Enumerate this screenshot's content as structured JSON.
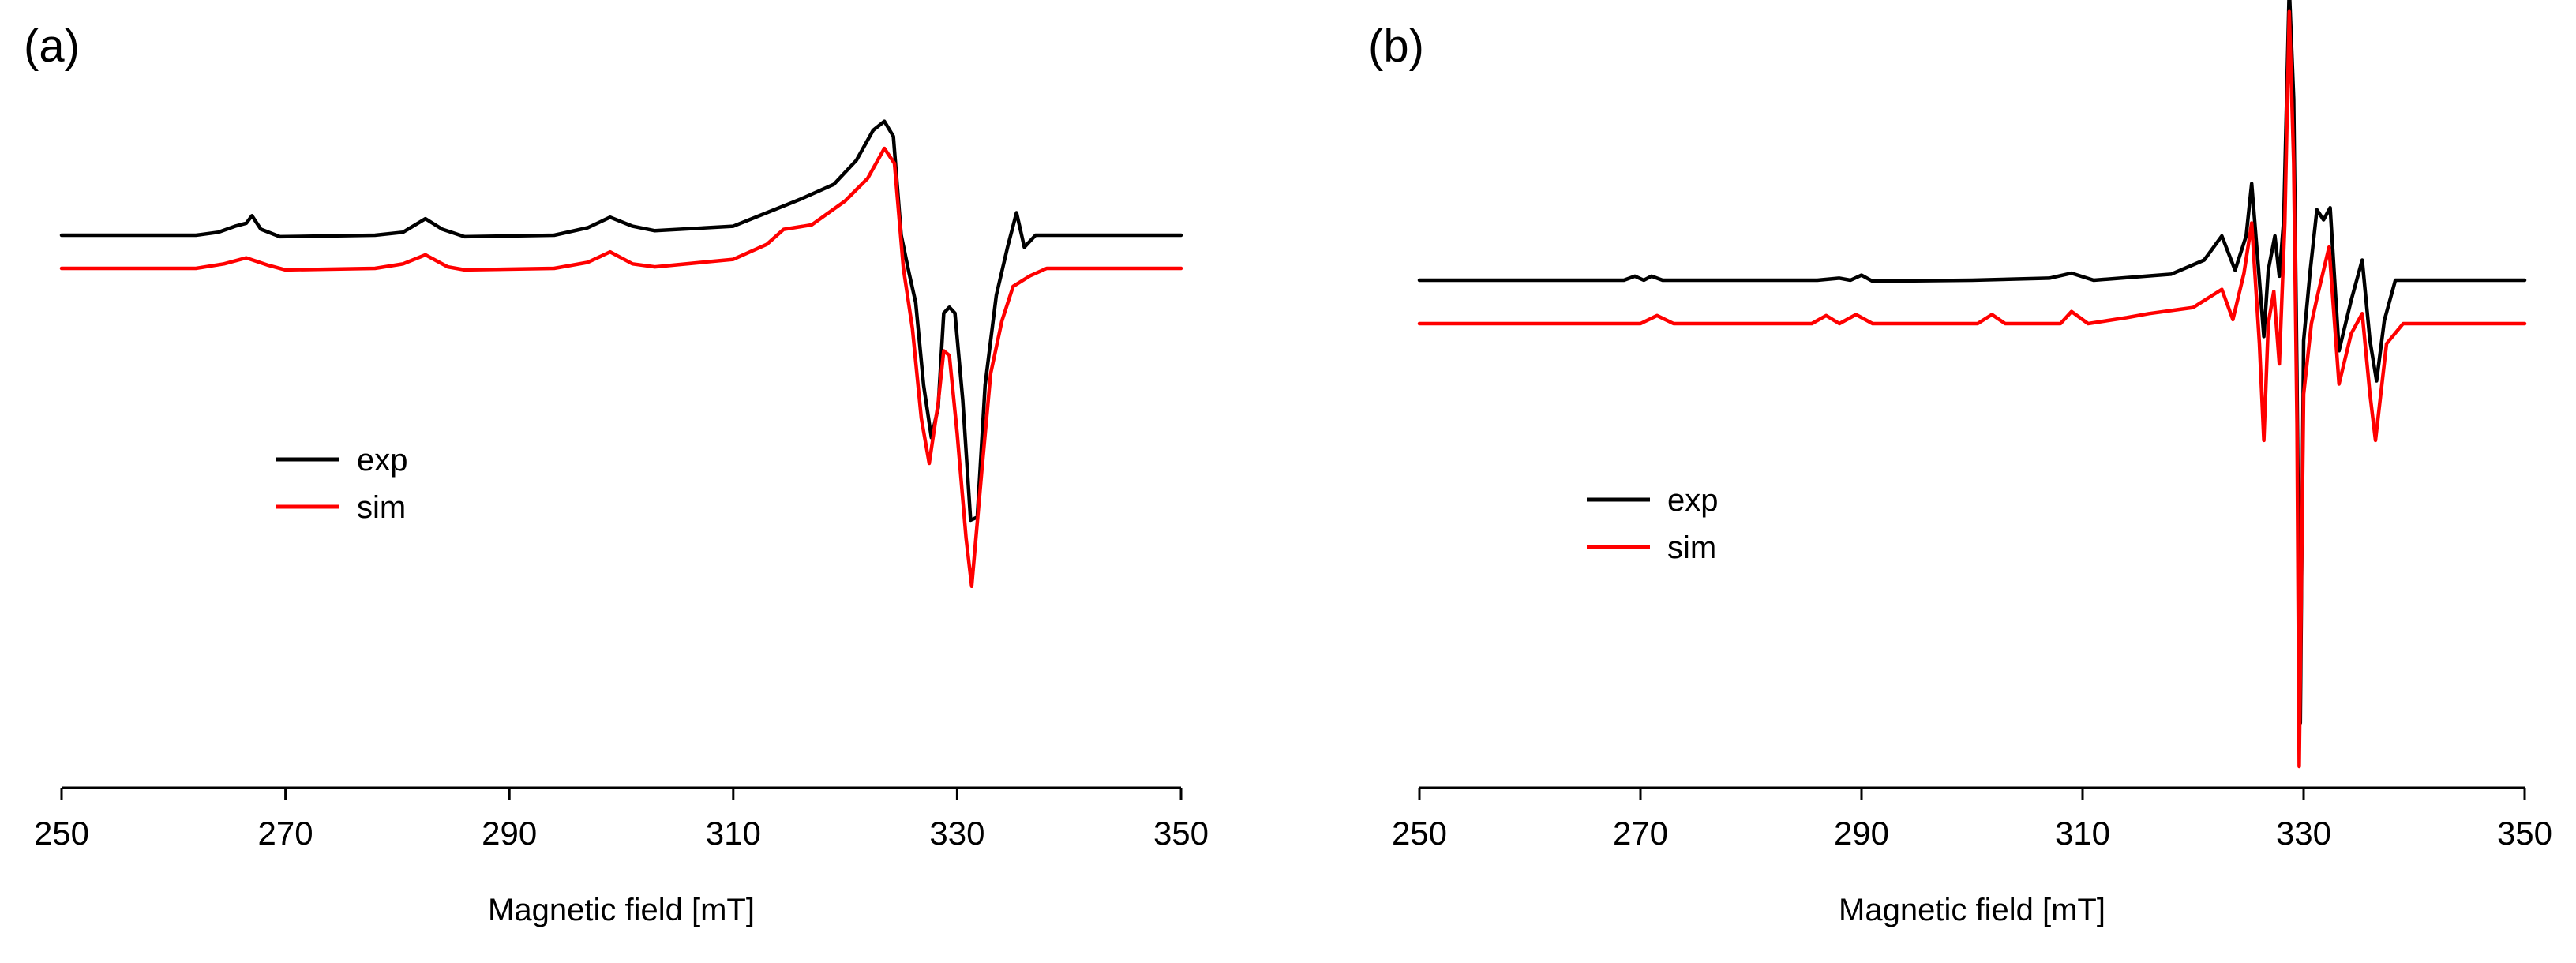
{
  "chart_data": [
    {
      "type": "line",
      "panel_label": "(a)",
      "xlabel": "Magnetic field [mT]",
      "ylabel": "",
      "xlim": [
        250,
        350
      ],
      "xticks": [
        "250",
        "270",
        "290",
        "310",
        "330",
        "350"
      ],
      "y_axis_visible": false,
      "grid": false,
      "legend_position": "left-center",
      "legend": [
        "exp",
        "sim"
      ],
      "colors": {
        "exp": "#000000",
        "sim": "#ff0000"
      },
      "series": [
        {
          "name": "exp",
          "color": "#000000",
          "points": [
            [
              250,
              0.0
            ],
            [
              262,
              0.0
            ],
            [
              264,
              0.02
            ],
            [
              265.5,
              0.06
            ],
            [
              266.5,
              0.08
            ],
            [
              267,
              0.13
            ],
            [
              267.8,
              0.04
            ],
            [
              269.5,
              -0.01
            ],
            [
              278,
              0.0
            ],
            [
              280.5,
              0.02
            ],
            [
              282.5,
              0.11
            ],
            [
              284,
              0.04
            ],
            [
              286,
              -0.01
            ],
            [
              294,
              0.0
            ],
            [
              297,
              0.05
            ],
            [
              299,
              0.12
            ],
            [
              301,
              0.06
            ],
            [
              303,
              0.03
            ],
            [
              310,
              0.06
            ],
            [
              313,
              0.15
            ],
            [
              316,
              0.24
            ],
            [
              319,
              0.34
            ],
            [
              321,
              0.5
            ],
            [
              322.5,
              0.7
            ],
            [
              323.5,
              0.76
            ],
            [
              324.3,
              0.66
            ],
            [
              325,
              0.0
            ],
            [
              325.7,
              -0.25
            ],
            [
              326.3,
              -0.45
            ],
            [
              327,
              -1.0
            ],
            [
              327.7,
              -1.35
            ],
            [
              328.3,
              -1.15
            ],
            [
              328.8,
              -0.52
            ],
            [
              329.3,
              -0.48
            ],
            [
              329.8,
              -0.52
            ],
            [
              330.5,
              -1.1
            ],
            [
              331.2,
              -1.9
            ],
            [
              331.8,
              -1.88
            ],
            [
              332.5,
              -1.0
            ],
            [
              333.5,
              -0.4
            ],
            [
              334.5,
              -0.08
            ],
            [
              335.3,
              0.15
            ],
            [
              336,
              -0.08
            ],
            [
              337,
              0.0
            ],
            [
              339,
              0.0
            ],
            [
              350,
              0.0
            ]
          ]
        },
        {
          "name": "sim",
          "color": "#ff0000",
          "points": [
            [
              250,
              0.0
            ],
            [
              262,
              0.0
            ],
            [
              264.5,
              0.03
            ],
            [
              266.5,
              0.07
            ],
            [
              268.5,
              0.02
            ],
            [
              270,
              -0.01
            ],
            [
              278,
              0.0
            ],
            [
              280.5,
              0.03
            ],
            [
              282.5,
              0.09
            ],
            [
              284.5,
              0.01
            ],
            [
              286,
              -0.01
            ],
            [
              294,
              0.0
            ],
            [
              297,
              0.04
            ],
            [
              299,
              0.11
            ],
            [
              301,
              0.03
            ],
            [
              303,
              0.01
            ],
            [
              310,
              0.06
            ],
            [
              313,
              0.16
            ],
            [
              314.5,
              0.26
            ],
            [
              317,
              0.29
            ],
            [
              320,
              0.45
            ],
            [
              322,
              0.6
            ],
            [
              323.5,
              0.8
            ],
            [
              324.4,
              0.7
            ],
            [
              325.2,
              0.0
            ],
            [
              326,
              -0.4
            ],
            [
              326.8,
              -1.0
            ],
            [
              327.5,
              -1.3
            ],
            [
              328.3,
              -0.9
            ],
            [
              328.8,
              -0.55
            ],
            [
              329.3,
              -0.58
            ],
            [
              330,
              -1.1
            ],
            [
              330.8,
              -1.8
            ],
            [
              331.3,
              -2.12
            ],
            [
              332.2,
              -1.35
            ],
            [
              333,
              -0.7
            ],
            [
              334,
              -0.35
            ],
            [
              335,
              -0.12
            ],
            [
              336.5,
              -0.05
            ],
            [
              338,
              0.0
            ],
            [
              350,
              0.0
            ]
          ]
        }
      ]
    },
    {
      "type": "line",
      "panel_label": "(b)",
      "xlabel": "Magnetic field [mT]",
      "ylabel": "",
      "xlim": [
        250,
        350
      ],
      "xticks": [
        "250",
        "270",
        "290",
        "310",
        "330",
        "350"
      ],
      "y_axis_visible": false,
      "grid": false,
      "legend_position": "left-center",
      "legend": [
        "exp",
        "sim"
      ],
      "colors": {
        "exp": "#000000",
        "sim": "#ff0000"
      },
      "series": [
        {
          "name": "exp",
          "color": "#000000",
          "points": [
            [
              250,
              0.0
            ],
            [
              268.5,
              0.0
            ],
            [
              269.5,
              0.02
            ],
            [
              270.3,
              0.0
            ],
            [
              271,
              0.02
            ],
            [
              272,
              0.0
            ],
            [
              286,
              0.0
            ],
            [
              288,
              0.01
            ],
            [
              289,
              0.0
            ],
            [
              290,
              0.025
            ],
            [
              291,
              -0.005
            ],
            [
              300,
              0.0
            ],
            [
              307,
              0.01
            ],
            [
              309,
              0.035
            ],
            [
              311,
              0.0
            ],
            [
              318,
              0.03
            ],
            [
              321,
              0.1
            ],
            [
              322.6,
              0.22
            ],
            [
              323.8,
              0.05
            ],
            [
              324.8,
              0.22
            ],
            [
              325.3,
              0.48
            ],
            [
              326,
              0.0
            ],
            [
              326.4,
              -0.28
            ],
            [
              326.8,
              0.05
            ],
            [
              327.4,
              0.22
            ],
            [
              327.8,
              0.02
            ],
            [
              328.2,
              0.3
            ],
            [
              328.7,
              1.45
            ],
            [
              329.1,
              0.9
            ],
            [
              329.4,
              -0.5
            ],
            [
              329.7,
              -2.2
            ],
            [
              330,
              -0.3
            ],
            [
              330.6,
              0.05
            ],
            [
              331.2,
              0.35
            ],
            [
              331.8,
              0.3
            ],
            [
              332.4,
              0.36
            ],
            [
              333.2,
              -0.35
            ],
            [
              334.3,
              -0.1
            ],
            [
              335.3,
              0.1
            ],
            [
              336,
              -0.3
            ],
            [
              336.6,
              -0.5
            ],
            [
              337.3,
              -0.2
            ],
            [
              338.3,
              0.0
            ],
            [
              350,
              0.0
            ]
          ]
        },
        {
          "name": "sim",
          "color": "#ff0000",
          "points": [
            [
              250,
              0.0
            ],
            [
              270,
              0.0
            ],
            [
              271.5,
              0.04
            ],
            [
              273,
              0.0
            ],
            [
              285.5,
              0.0
            ],
            [
              286.8,
              0.04
            ],
            [
              288,
              0.0
            ],
            [
              289.5,
              0.045
            ],
            [
              291,
              0.0
            ],
            [
              300.5,
              0.0
            ],
            [
              301.8,
              0.045
            ],
            [
              303,
              0.0
            ],
            [
              308,
              0.0
            ],
            [
              309,
              0.06
            ],
            [
              310.5,
              0.0
            ],
            [
              314,
              0.03
            ],
            [
              316,
              0.05
            ],
            [
              320,
              0.08
            ],
            [
              322.6,
              0.17
            ],
            [
              323.6,
              0.02
            ],
            [
              324.6,
              0.25
            ],
            [
              325.3,
              0.5
            ],
            [
              326,
              -0.1
            ],
            [
              326.4,
              -0.58
            ],
            [
              326.8,
              0.0
            ],
            [
              327.3,
              0.16
            ],
            [
              327.8,
              -0.2
            ],
            [
              328.3,
              0.5
            ],
            [
              328.7,
              1.55
            ],
            [
              329.1,
              0.8
            ],
            [
              329.4,
              -0.5
            ],
            [
              329.6,
              -2.2
            ],
            [
              330,
              -0.35
            ],
            [
              330.7,
              0.0
            ],
            [
              331.3,
              0.15
            ],
            [
              332.3,
              0.38
            ],
            [
              333.2,
              -0.3
            ],
            [
              334.3,
              -0.05
            ],
            [
              335.3,
              0.05
            ],
            [
              336,
              -0.35
            ],
            [
              336.5,
              -0.58
            ],
            [
              337.5,
              -0.1
            ],
            [
              339,
              0.0
            ],
            [
              350,
              0.0
            ]
          ]
        }
      ]
    }
  ]
}
